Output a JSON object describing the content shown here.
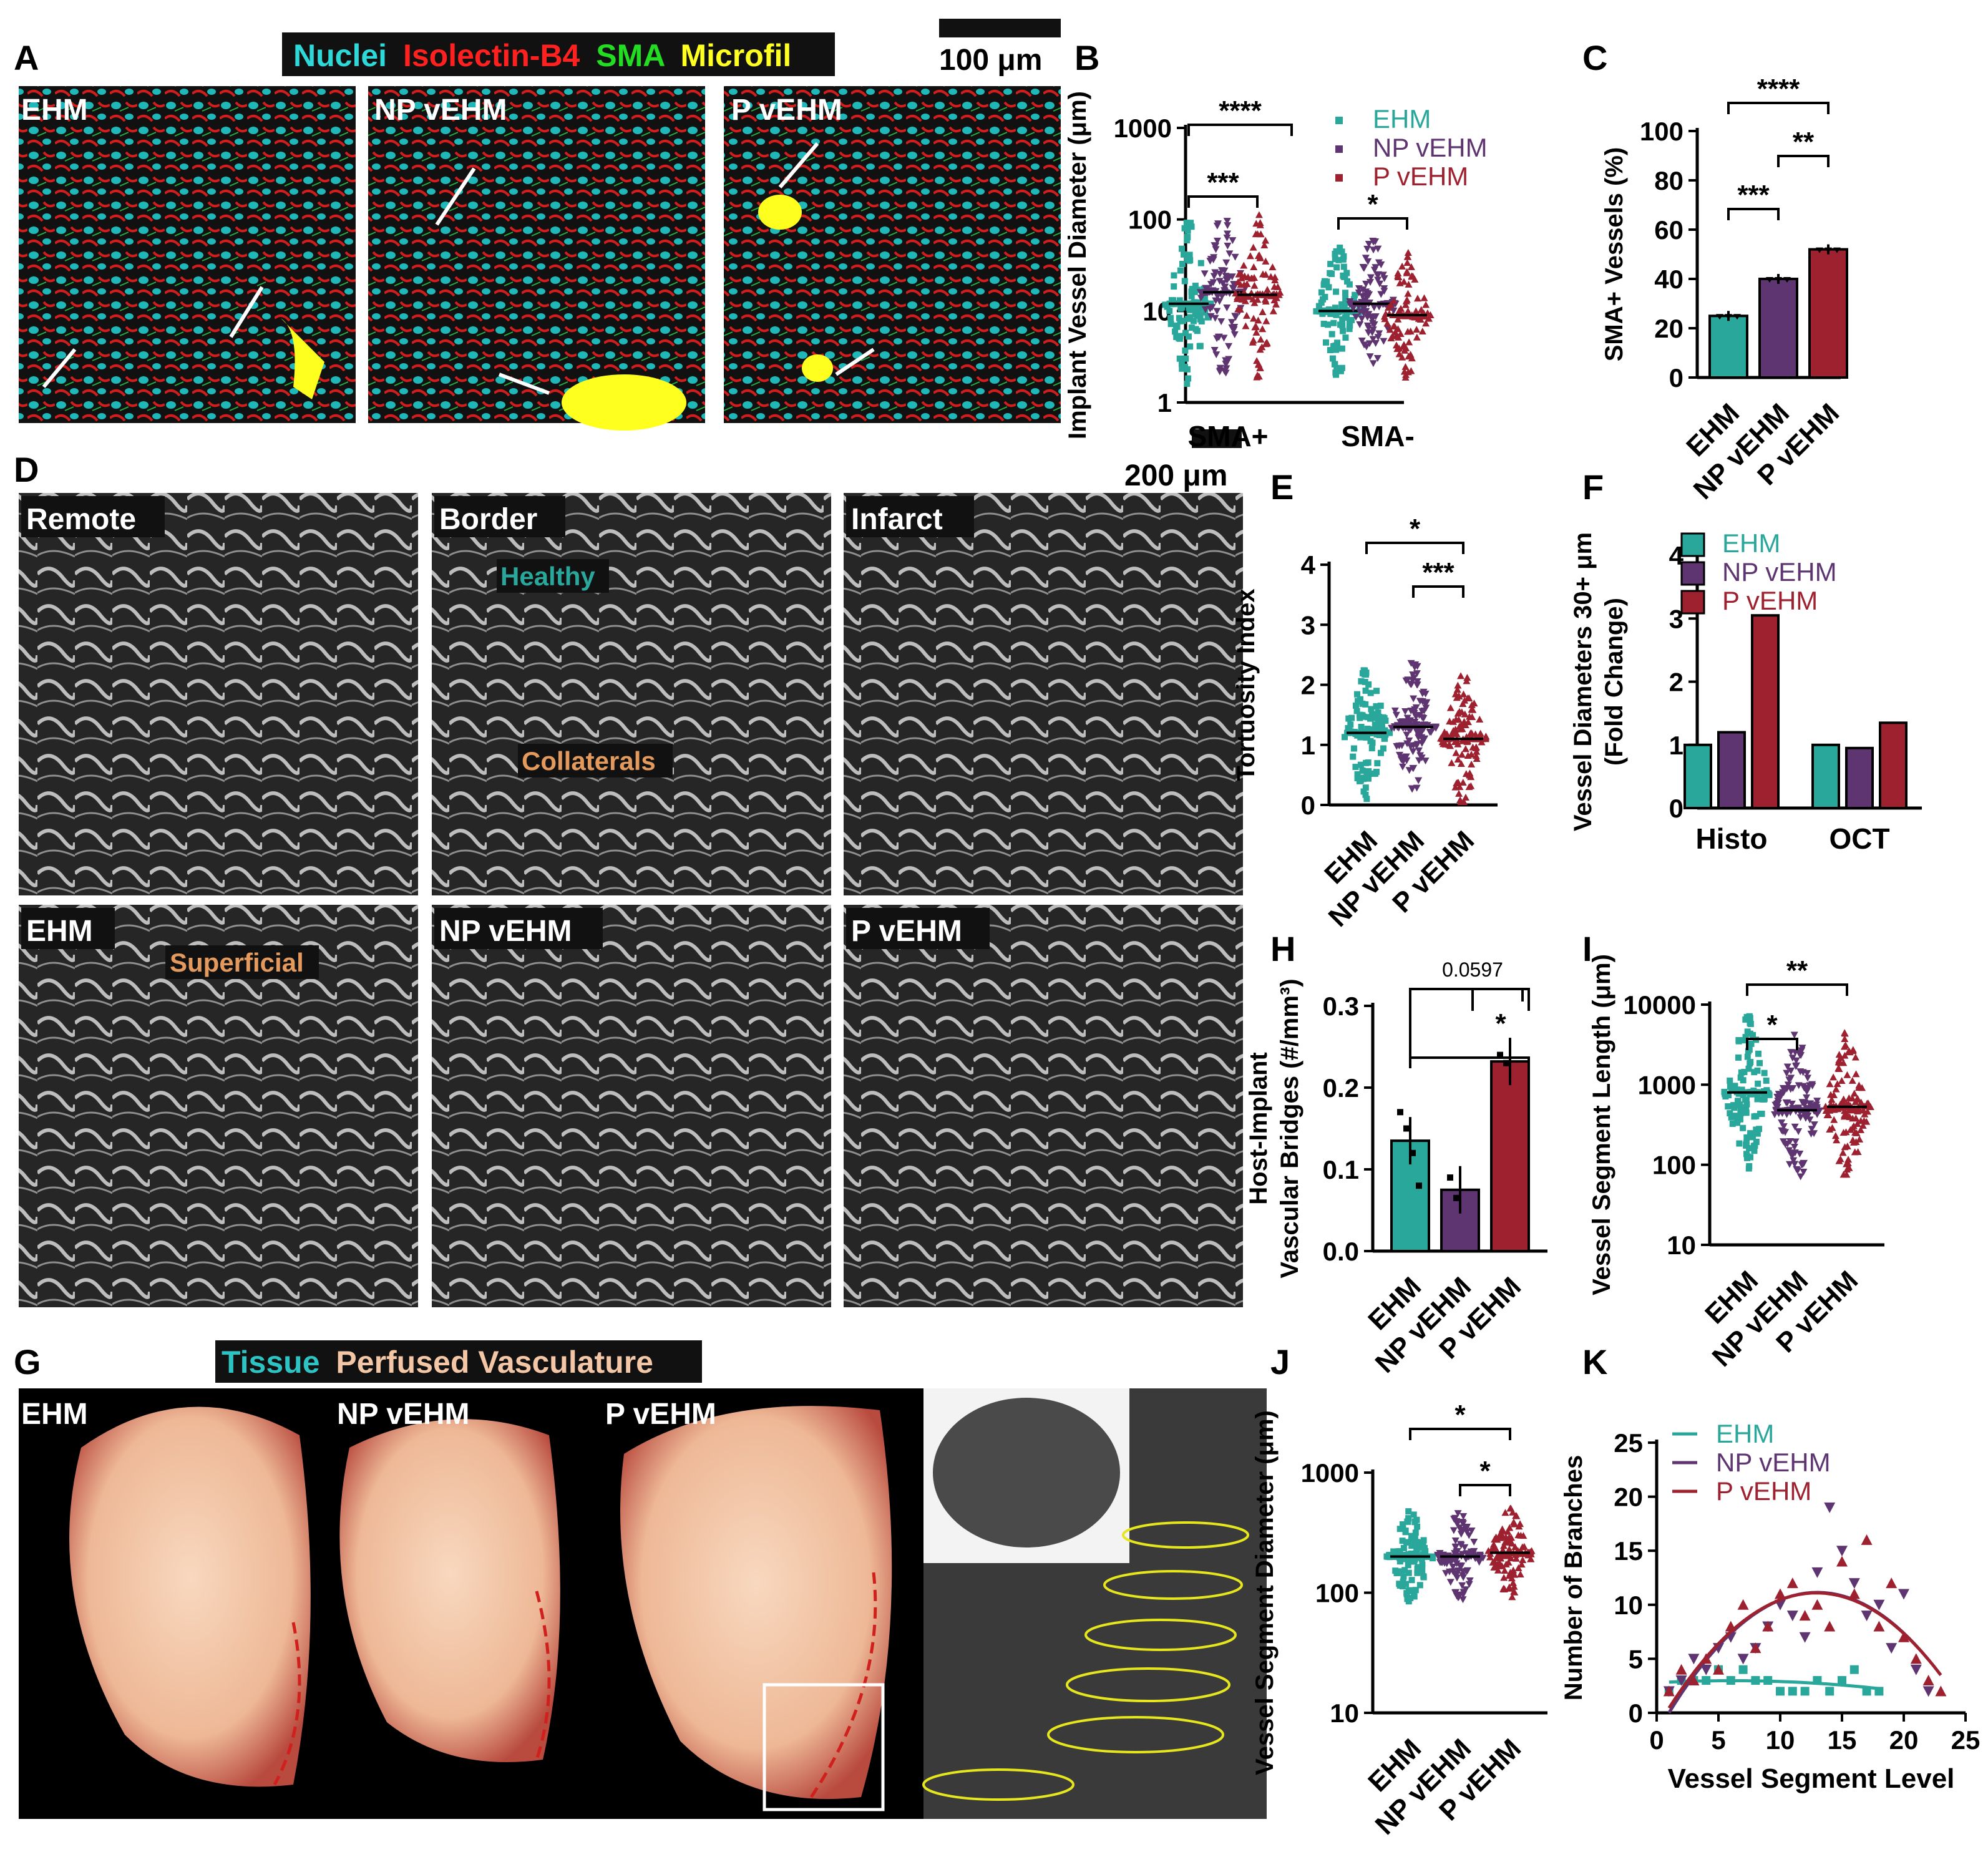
{
  "colors": {
    "ehm": "#2aa79b",
    "np": "#5e3570",
    "p": "#9e2130",
    "tissue": "#2ec3c3",
    "vasculature": "#f3c6a6"
  },
  "panel_letters": [
    "A",
    "B",
    "C",
    "D",
    "E",
    "F",
    "G",
    "H",
    "I",
    "J",
    "K"
  ],
  "panel_A": {
    "legend": [
      {
        "text": "Nuclei",
        "color": "#2ed8d8"
      },
      {
        "text": "Isolectin-B4",
        "color": "#ff2020"
      },
      {
        "text": "SMA",
        "color": "#22dd22"
      },
      {
        "text": "Microfil",
        "color": "#ffff22"
      }
    ],
    "scale": "100 μm",
    "image_labels": [
      "EHM",
      "NP vEHM",
      "P vEHM"
    ]
  },
  "panel_D": {
    "scale": "200 μm",
    "image_labels": [
      "Remote",
      "Border",
      "Infarct",
      "EHM",
      "NP vEHM",
      "P vEHM"
    ],
    "annotations": [
      "Healthy",
      "Collaterals",
      "Superficial"
    ]
  },
  "panel_G": {
    "legend": [
      {
        "text": "Tissue",
        "color": "#2ec3c3"
      },
      {
        "text": "Perfused Vasculature",
        "color": "#f3c6a6"
      }
    ],
    "image_labels": [
      "EHM",
      "NP vEHM",
      "P vEHM"
    ]
  },
  "chart_data": [
    {
      "panel": "B",
      "type": "scatter",
      "ylabel": "Implant Vessel Diameter (μm)",
      "yscale": "log",
      "ylim": [
        1,
        1000
      ],
      "ytick_labels": [
        "1",
        "10",
        "100",
        "1000"
      ],
      "categories": [
        "SMA+",
        "SMA-"
      ],
      "legend": [
        "EHM",
        "NP vEHM",
        "P vEHM"
      ],
      "series": [
        {
          "name": "EHM",
          "median": [
            12,
            10
          ]
        },
        {
          "name": "NP vEHM",
          "median": [
            16,
            12
          ]
        },
        {
          "name": "P vEHM",
          "median": [
            15,
            9
          ]
        }
      ],
      "significance": [
        "***",
        "****",
        "*"
      ]
    },
    {
      "panel": "C",
      "type": "bar",
      "ylabel": "SMA+ Vessels (%)",
      "ylim": [
        0,
        100
      ],
      "ytick_labels": [
        "0",
        "20",
        "40",
        "60",
        "80",
        "100"
      ],
      "categories": [
        "EHM",
        "NP vEHM",
        "P vEHM"
      ],
      "values": [
        25,
        40,
        52
      ],
      "significance": [
        "****",
        "**",
        "***"
      ]
    },
    {
      "panel": "E",
      "type": "scatter",
      "ylabel": "Tortuosity Index",
      "ylim": [
        0,
        4
      ],
      "ytick_labels": [
        "0",
        "1",
        "2",
        "3",
        "4"
      ],
      "categories": [
        "EHM",
        "NP vEHM",
        "P vEHM"
      ],
      "medians": [
        1.2,
        1.3,
        1.1
      ],
      "significance": [
        "*",
        "***"
      ]
    },
    {
      "panel": "F",
      "type": "bar",
      "ylabel_lines": [
        "Vessel Diameters 30+ μm",
        "(Fold Change)"
      ],
      "ylim": [
        0,
        4
      ],
      "ytick_labels": [
        "0",
        "1",
        "2",
        "3",
        "4"
      ],
      "categories": [
        "Histo",
        "OCT"
      ],
      "series": [
        {
          "name": "EHM",
          "values": [
            1.0,
            1.0
          ]
        },
        {
          "name": "NP vEHM",
          "values": [
            1.2,
            0.95
          ]
        },
        {
          "name": "P vEHM",
          "values": [
            3.05,
            1.35
          ]
        }
      ]
    },
    {
      "panel": "H",
      "type": "bar",
      "ylabel_lines": [
        "Host-Implant",
        "Vascular Bridges (#/mm³)"
      ],
      "ylim": [
        0,
        0.3
      ],
      "ytick_labels": [
        "0.0",
        "0.1",
        "0.2",
        "0.3"
      ],
      "categories": [
        "EHM",
        "NP vEHM",
        "P vEHM"
      ],
      "values": [
        0.135,
        0.075,
        0.232
      ],
      "significance": [
        "0.0597",
        "*"
      ]
    },
    {
      "panel": "I",
      "type": "scatter",
      "ylabel": "Vessel Segment Length (μm)",
      "yscale": "log",
      "ylim": [
        10,
        10000
      ],
      "ytick_labels": [
        "10",
        "100",
        "1000",
        "10000"
      ],
      "categories": [
        "EHM",
        "NP vEHM",
        "P vEHM"
      ],
      "medians": [
        800,
        480,
        530
      ],
      "significance": [
        "*",
        "**"
      ]
    },
    {
      "panel": "J",
      "type": "scatter",
      "ylabel": "Vessel Segment Diameter (μm)",
      "yscale": "log",
      "ylim": [
        10,
        1000
      ],
      "ytick_labels": [
        "10",
        "100",
        "1000"
      ],
      "categories": [
        "EHM",
        "NP vEHM",
        "P vEHM"
      ],
      "medians": [
        200,
        200,
        215
      ],
      "significance": [
        "*",
        "*"
      ]
    },
    {
      "panel": "K",
      "type": "scatter",
      "xlabel": "Vessel Segment Level",
      "ylabel": "Number of Branches",
      "xlim": [
        0,
        25
      ],
      "ylim": [
        0,
        25
      ],
      "xtick_labels": [
        "0",
        "5",
        "10",
        "15",
        "20",
        "25"
      ],
      "ytick_labels": [
        "0",
        "5",
        "10",
        "15",
        "20",
        "25"
      ],
      "series": [
        {
          "name": "EHM",
          "x": [
            1,
            2,
            3,
            4,
            5,
            6,
            7,
            8,
            9,
            10,
            11,
            12,
            13,
            14,
            15,
            16,
            17,
            18
          ],
          "y": [
            2,
            3,
            3,
            3,
            4,
            3,
            4,
            3,
            3,
            2,
            2,
            2,
            3,
            2,
            3,
            4,
            2,
            2
          ]
        },
        {
          "name": "NP vEHM",
          "x": [
            1,
            2,
            3,
            4,
            5,
            6,
            7,
            8,
            9,
            10,
            11,
            12,
            13,
            14,
            15,
            16,
            17,
            18,
            19,
            20,
            21,
            22
          ],
          "y": [
            2,
            3,
            5,
            4,
            6,
            7,
            5,
            6,
            8,
            10,
            9,
            7,
            13,
            19,
            15,
            12,
            9,
            10,
            6,
            11,
            4,
            2
          ]
        },
        {
          "name": "P vEHM",
          "x": [
            1,
            2,
            3,
            4,
            5,
            6,
            7,
            8,
            9,
            10,
            11,
            12,
            13,
            14,
            15,
            16,
            17,
            18,
            19,
            20,
            21,
            22,
            23
          ],
          "y": [
            2,
            4,
            3,
            5,
            4,
            8,
            10,
            6,
            8,
            11,
            12,
            9,
            10,
            8,
            14,
            11,
            16,
            8,
            12,
            7,
            5,
            3,
            2
          ]
        }
      ]
    }
  ]
}
